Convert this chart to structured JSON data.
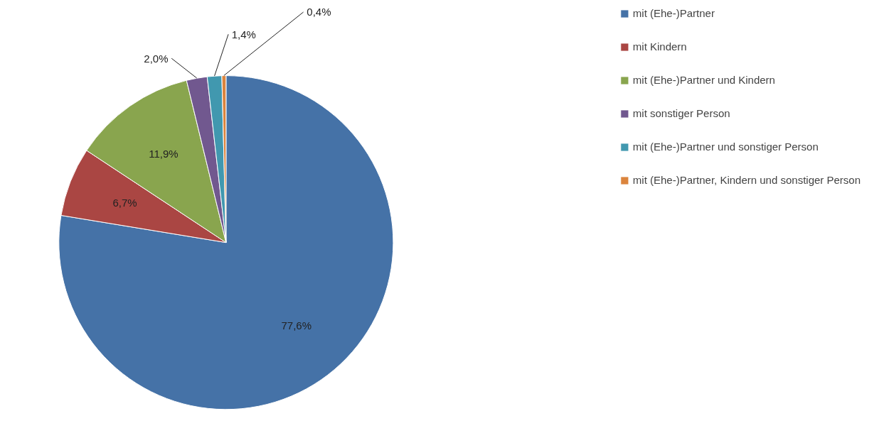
{
  "chart_data": {
    "type": "pie",
    "categories": [
      "mit (Ehe-)Partner",
      "mit Kindern",
      "mit (Ehe-)Partner und Kindern",
      "mit sonstiger Person",
      "mit (Ehe-)Partner und sonstiger Person",
      "mit (Ehe-)Partner, Kindern und sonstiger Person"
    ],
    "values": [
      77.6,
      6.7,
      11.9,
      2.0,
      1.4,
      0.4
    ],
    "colors": [
      "#4572a7",
      "#aa4643",
      "#89a54e",
      "#71588f",
      "#4198af",
      "#db843d"
    ],
    "value_labels": [
      "77,6%",
      "6,7%",
      "11,9%",
      "2,0%",
      "1,4%",
      "0,4%"
    ],
    "legend": "right"
  }
}
